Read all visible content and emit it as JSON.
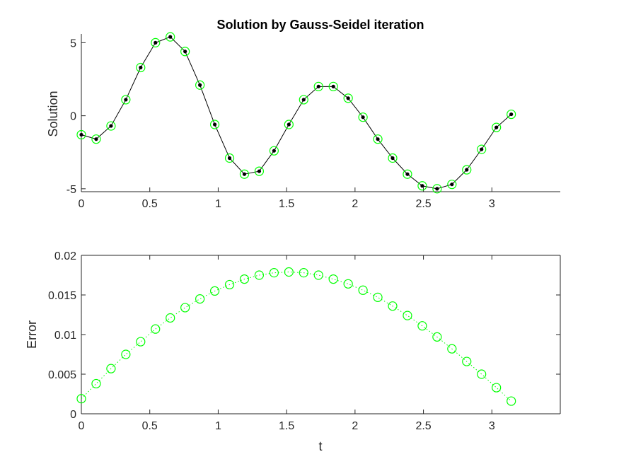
{
  "chart_data": [
    {
      "type": "line",
      "title": "Solution by Gauss-Seidel iteration",
      "xlabel": "",
      "ylabel": "Solution",
      "xlim": [
        0,
        3.5
      ],
      "ylim": [
        -5.2,
        5.6
      ],
      "xticks": [
        0,
        0.5,
        1,
        1.5,
        2,
        2.5,
        3
      ],
      "xtick_labels": [
        "0",
        "0.5",
        "1",
        "1.5",
        "2",
        "2.5",
        "3"
      ],
      "yticks": [
        -5,
        0,
        5
      ],
      "ytick_labels": [
        "-5",
        "0",
        "5"
      ],
      "grid": false,
      "x": [
        0,
        0.1083,
        0.2166,
        0.325,
        0.4333,
        0.5416,
        0.6499,
        0.7582,
        0.8666,
        0.9749,
        1.0832,
        1.1915,
        1.2998,
        1.4082,
        1.5165,
        1.6248,
        1.7331,
        1.8414,
        1.9498,
        2.0581,
        2.1664,
        2.2747,
        2.383,
        2.4914,
        2.5997,
        2.708,
        2.8163,
        2.9246,
        3.033,
        3.1416
      ],
      "series": [
        {
          "style": "black line with dot markers",
          "color": "#000000",
          "values": [
            -1.3,
            -1.6,
            -0.7,
            1.1,
            3.3,
            5.0,
            5.4,
            4.4,
            2.1,
            -0.6,
            -2.9,
            -4.0,
            -3.8,
            -2.4,
            -0.6,
            1.1,
            2.0,
            2.0,
            1.2,
            -0.1,
            -1.6,
            -2.9,
            -4.0,
            -4.8,
            -5.0,
            -4.7,
            -3.7,
            -2.3,
            -0.8,
            0.1
          ]
        },
        {
          "style": "green circle markers",
          "color": "#00ff00",
          "values": [
            -1.3,
            -1.6,
            -0.7,
            1.1,
            3.3,
            5.0,
            5.4,
            4.4,
            2.1,
            -0.6,
            -2.9,
            -4.0,
            -3.8,
            -2.4,
            -0.6,
            1.1,
            2.0,
            2.0,
            1.2,
            -0.1,
            -1.6,
            -2.9,
            -4.0,
            -4.8,
            -5.0,
            -4.7,
            -3.7,
            -2.3,
            -0.8,
            0.1
          ]
        }
      ]
    },
    {
      "type": "line",
      "title": "",
      "xlabel": "t",
      "ylabel": "Error",
      "xlim": [
        0,
        3.5
      ],
      "ylim": [
        0,
        0.02
      ],
      "xticks": [
        0,
        0.5,
        1,
        1.5,
        2,
        2.5,
        3
      ],
      "xtick_labels": [
        "0",
        "0.5",
        "1",
        "1.5",
        "2",
        "2.5",
        "3"
      ],
      "yticks": [
        0,
        0.005,
        0.01,
        0.015,
        0.02
      ],
      "ytick_labels": [
        "0",
        "0.005",
        "0.01",
        "0.015",
        "0.02"
      ],
      "grid": false,
      "x": [
        0,
        0.1083,
        0.2166,
        0.325,
        0.4333,
        0.5416,
        0.6499,
        0.7582,
        0.8666,
        0.9749,
        1.0832,
        1.1915,
        1.2998,
        1.4082,
        1.5165,
        1.6248,
        1.7331,
        1.8414,
        1.9498,
        2.0581,
        2.1664,
        2.2747,
        2.383,
        2.4914,
        2.5997,
        2.708,
        2.8163,
        2.9246,
        3.033,
        3.1416
      ],
      "series": [
        {
          "style": "green dotted line with circle markers",
          "color": "#00ff00",
          "values": [
            0.0019,
            0.0038,
            0.0057,
            0.0075,
            0.0091,
            0.0107,
            0.0121,
            0.0134,
            0.0145,
            0.0155,
            0.0163,
            0.017,
            0.0175,
            0.0178,
            0.0179,
            0.0178,
            0.0175,
            0.017,
            0.0164,
            0.0156,
            0.0147,
            0.0136,
            0.0124,
            0.0111,
            0.0097,
            0.0082,
            0.0066,
            0.005,
            0.0033,
            0.0016
          ]
        }
      ]
    }
  ]
}
